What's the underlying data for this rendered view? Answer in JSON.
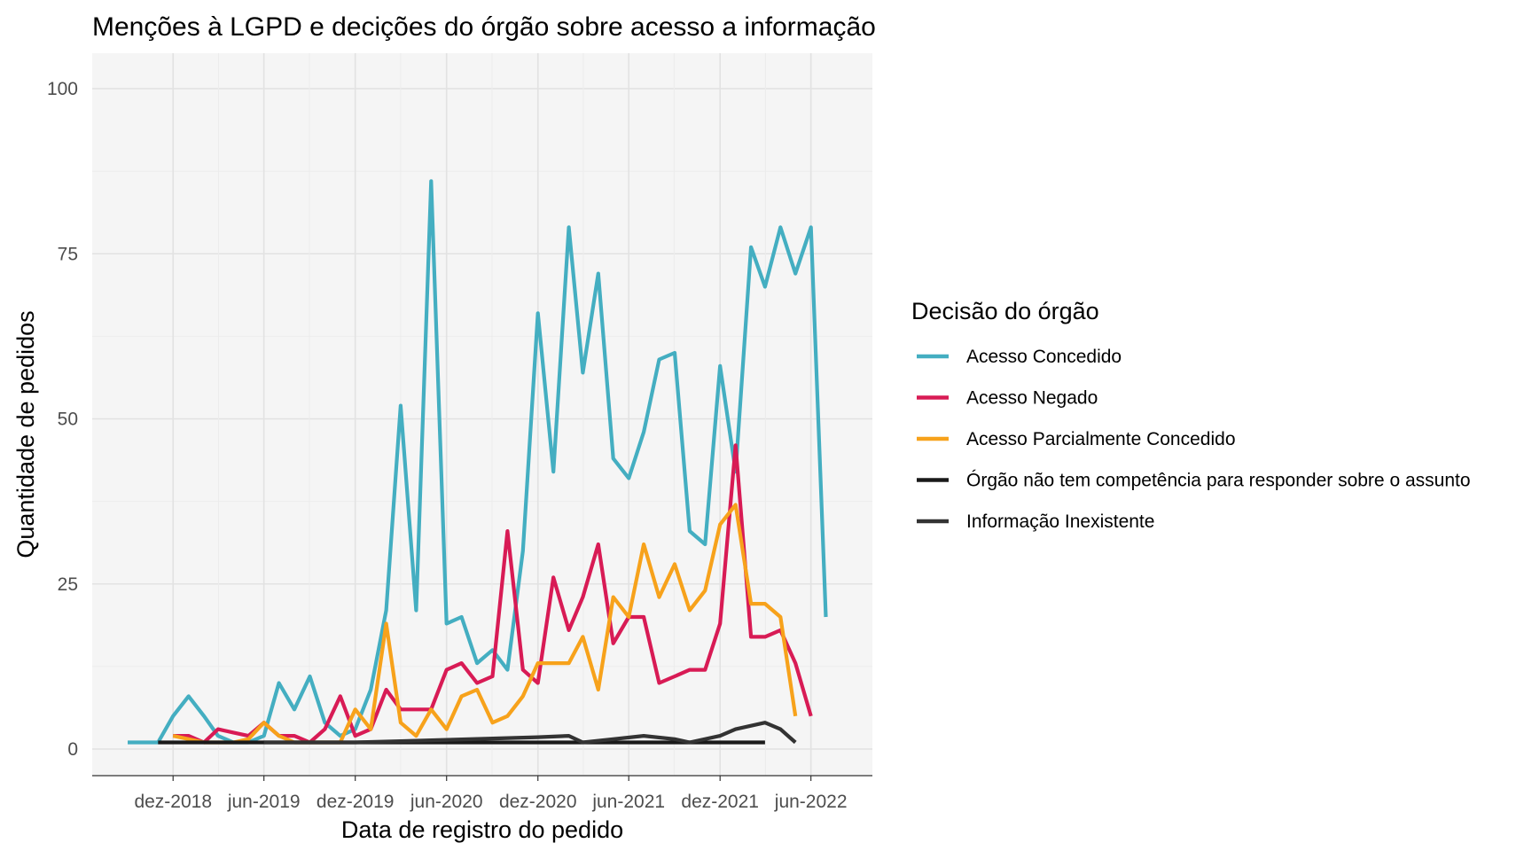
{
  "chart_data": {
    "type": "line",
    "title": "Menções à LGPD e decições do órgão sobre acesso a informação",
    "xlabel": "Data de registro do pedido",
    "ylabel": "Quantidade de pedidos",
    "x_ticks": [
      {
        "label": "dez-2018",
        "date": "2018-12-01"
      },
      {
        "label": "jun-2019",
        "date": "2019-06-01"
      },
      {
        "label": "dez-2019",
        "date": "2019-12-01"
      },
      {
        "label": "jun-2020",
        "date": "2020-06-01"
      },
      {
        "label": "dez-2020",
        "date": "2020-12-01"
      },
      {
        "label": "jun-2021",
        "date": "2021-06-01"
      },
      {
        "label": "dez-2021",
        "date": "2021-12-01"
      },
      {
        "label": "jun-2022",
        "date": "2022-06-01"
      }
    ],
    "y_ticks": [
      0,
      25,
      50,
      75,
      100
    ],
    "xlim": [
      "2018-09-01",
      "2022-08-01"
    ],
    "ylim": [
      0,
      100
    ],
    "grid": true,
    "legend": {
      "title": "Decisão do órgão",
      "position": "right"
    },
    "series": [
      {
        "name": "Acesso Concedido",
        "color": "#44aec1",
        "points": [
          [
            "2018-09-01",
            1
          ],
          [
            "2018-10-01",
            1
          ],
          [
            "2018-11-01",
            1
          ],
          [
            "2018-12-01",
            5
          ],
          [
            "2019-01-01",
            8
          ],
          [
            "2019-02-01",
            5
          ],
          [
            "2019-03-01",
            2
          ],
          [
            "2019-04-01",
            1
          ],
          [
            "2019-05-01",
            1
          ],
          [
            "2019-06-01",
            2
          ],
          [
            "2019-07-01",
            10
          ],
          [
            "2019-08-01",
            6
          ],
          [
            "2019-09-01",
            11
          ],
          [
            "2019-10-01",
            4
          ],
          [
            "2019-11-01",
            2
          ],
          [
            "2019-12-01",
            3
          ],
          [
            "2020-01-01",
            9
          ],
          [
            "2020-02-01",
            21
          ],
          [
            "2020-03-01",
            52
          ],
          [
            "2020-04-01",
            21
          ],
          [
            "2020-05-01",
            86
          ],
          [
            "2020-06-01",
            19
          ],
          [
            "2020-07-01",
            20
          ],
          [
            "2020-08-01",
            13
          ],
          [
            "2020-09-01",
            15
          ],
          [
            "2020-10-01",
            12
          ],
          [
            "2020-11-01",
            30
          ],
          [
            "2020-12-01",
            66
          ],
          [
            "2021-01-01",
            42
          ],
          [
            "2021-02-01",
            79
          ],
          [
            "2021-03-01",
            57
          ],
          [
            "2021-04-01",
            72
          ],
          [
            "2021-05-01",
            44
          ],
          [
            "2021-06-01",
            41
          ],
          [
            "2021-07-01",
            48
          ],
          [
            "2021-08-01",
            59
          ],
          [
            "2021-09-01",
            60
          ],
          [
            "2021-10-01",
            33
          ],
          [
            "2021-11-01",
            31
          ],
          [
            "2021-12-01",
            58
          ],
          [
            "2022-01-01",
            42
          ],
          [
            "2022-02-01",
            76
          ],
          [
            "2022-03-01",
            70
          ],
          [
            "2022-04-01",
            79
          ],
          [
            "2022-05-01",
            72
          ],
          [
            "2022-06-01",
            79
          ],
          [
            "2022-07-01",
            20
          ]
        ]
      },
      {
        "name": "Acesso Negado",
        "color": "#d81b55",
        "points": [
          [
            "2018-12-01",
            2
          ],
          [
            "2019-01-01",
            2
          ],
          [
            "2019-02-01",
            1
          ],
          [
            "2019-03-01",
            3
          ],
          [
            "2019-04-01",
            2.5
          ],
          [
            "2019-05-01",
            2
          ],
          [
            "2019-06-01",
            4
          ],
          [
            "2019-07-01",
            2
          ],
          [
            "2019-08-01",
            2
          ],
          [
            "2019-09-01",
            1
          ],
          [
            "2019-10-01",
            3
          ],
          [
            "2019-11-01",
            8
          ],
          [
            "2019-12-01",
            2
          ],
          [
            "2020-01-01",
            3
          ],
          [
            "2020-02-01",
            9
          ],
          [
            "2020-03-01",
            6
          ],
          [
            "2020-04-01",
            6
          ],
          [
            "2020-05-01",
            6
          ],
          [
            "2020-06-01",
            12
          ],
          [
            "2020-07-01",
            13
          ],
          [
            "2020-08-01",
            10
          ],
          [
            "2020-09-01",
            11
          ],
          [
            "2020-10-01",
            33
          ],
          [
            "2020-11-01",
            12
          ],
          [
            "2020-12-01",
            10
          ],
          [
            "2021-01-01",
            26
          ],
          [
            "2021-02-01",
            18
          ],
          [
            "2021-03-01",
            23
          ],
          [
            "2021-04-01",
            31
          ],
          [
            "2021-05-01",
            16
          ],
          [
            "2021-06-01",
            20
          ],
          [
            "2021-07-01",
            20
          ],
          [
            "2021-08-01",
            10
          ],
          [
            "2021-09-01",
            11
          ],
          [
            "2021-10-01",
            12
          ],
          [
            "2021-11-01",
            12
          ],
          [
            "2021-12-01",
            19
          ],
          [
            "2022-01-01",
            46
          ],
          [
            "2022-02-01",
            17
          ],
          [
            "2022-03-01",
            17
          ],
          [
            "2022-04-01",
            18
          ],
          [
            "2022-05-01",
            13
          ],
          [
            "2022-06-01",
            5
          ]
        ]
      },
      {
        "name": "Acesso Parcialmente Concedido",
        "color": "#f7a21b",
        "points": [
          [
            "2018-12-01",
            2
          ],
          [
            "2019-01-01",
            1.5
          ],
          [
            "2019-02-01",
            1
          ],
          [
            "2019-03-01",
            1
          ],
          [
            "2019-04-01",
            1
          ],
          [
            "2019-05-01",
            1.5
          ],
          [
            "2019-06-01",
            4
          ],
          [
            "2019-07-01",
            2
          ],
          [
            "2019-08-01",
            1
          ],
          [
            "2019-09-01",
            1
          ],
          [
            "2019-10-01",
            1
          ],
          [
            "2019-11-01",
            1
          ],
          [
            "2019-12-01",
            6
          ],
          [
            "2020-01-01",
            3
          ],
          [
            "2020-02-01",
            19
          ],
          [
            "2020-03-01",
            4
          ],
          [
            "2020-04-01",
            2
          ],
          [
            "2020-05-01",
            6
          ],
          [
            "2020-06-01",
            3
          ],
          [
            "2020-07-01",
            8
          ],
          [
            "2020-08-01",
            9
          ],
          [
            "2020-09-01",
            4
          ],
          [
            "2020-10-01",
            5
          ],
          [
            "2020-11-01",
            8
          ],
          [
            "2020-12-01",
            13
          ],
          [
            "2021-01-01",
            13
          ],
          [
            "2021-02-01",
            13
          ],
          [
            "2021-03-01",
            17
          ],
          [
            "2021-04-01",
            9
          ],
          [
            "2021-05-01",
            23
          ],
          [
            "2021-06-01",
            20
          ],
          [
            "2021-07-01",
            31
          ],
          [
            "2021-08-01",
            23
          ],
          [
            "2021-09-01",
            28
          ],
          [
            "2021-10-01",
            21
          ],
          [
            "2021-11-01",
            24
          ],
          [
            "2021-12-01",
            34
          ],
          [
            "2022-01-01",
            37
          ],
          [
            "2022-02-01",
            22
          ],
          [
            "2022-03-01",
            22
          ],
          [
            "2022-04-01",
            20
          ],
          [
            "2022-05-01",
            5
          ]
        ]
      },
      {
        "name": "Órgão não tem competência para responder sobre o assunto",
        "color": "#1a1a1a",
        "points": [
          [
            "2018-11-01",
            1
          ],
          [
            "2019-06-01",
            1
          ],
          [
            "2019-12-01",
            1
          ],
          [
            "2020-06-01",
            1
          ],
          [
            "2020-12-01",
            1
          ],
          [
            "2021-06-01",
            1
          ],
          [
            "2021-12-01",
            1
          ],
          [
            "2022-03-01",
            1
          ]
        ]
      },
      {
        "name": "Informação Inexistente",
        "color": "#333333",
        "points": [
          [
            "2019-06-01",
            1
          ],
          [
            "2019-12-01",
            1
          ],
          [
            "2020-03-01",
            1.2
          ],
          [
            "2020-06-01",
            1.4
          ],
          [
            "2020-09-01",
            1.6
          ],
          [
            "2020-12-01",
            1.8
          ],
          [
            "2021-02-01",
            2
          ],
          [
            "2021-03-01",
            1
          ],
          [
            "2021-05-01",
            1.5
          ],
          [
            "2021-07-01",
            2
          ],
          [
            "2021-09-01",
            1.5
          ],
          [
            "2021-10-01",
            1
          ],
          [
            "2021-12-01",
            2
          ],
          [
            "2022-01-01",
            3
          ],
          [
            "2022-03-01",
            4
          ],
          [
            "2022-04-01",
            3
          ],
          [
            "2022-05-01",
            1
          ]
        ]
      }
    ]
  }
}
